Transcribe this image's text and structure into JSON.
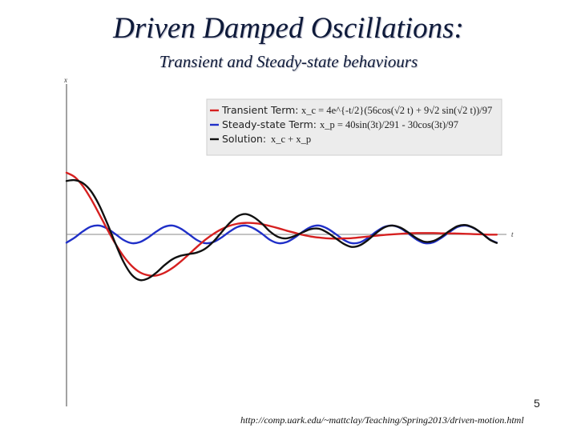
{
  "slide": {
    "title": "Driven Damped Oscillations:",
    "subtitle": "Transient and Steady-state behaviours",
    "page_number": "5",
    "source_url": "http://comp.uark.edu/~mattclay/Teaching/Spring2013/driven-motion.html"
  },
  "chart_data": {
    "type": "line",
    "xlabel": "t",
    "ylabel": "x",
    "xlim": [
      0,
      13.4
    ],
    "ylim": [
      -6.2,
      5.3
    ],
    "grid": false,
    "legend_placement": "top-right",
    "series": [
      {
        "name": "Transient Term",
        "legend_label": "Transient Term:",
        "formula": "x_c = 4e^{-t/2}(56cos(√2 t) + 9√2 sin(√2 t))/97",
        "color": "#d62020",
        "x": [
          0,
          0.25,
          0.5,
          0.75,
          1,
          1.25,
          1.5,
          1.75,
          2,
          2.25,
          2.5,
          2.75,
          3,
          3.25,
          3.5,
          3.75,
          4,
          4.25,
          4.5,
          4.75,
          5,
          5.25,
          5.5,
          5.75,
          6,
          6.25,
          6.5,
          6.75,
          7,
          7.25,
          7.5,
          7.75,
          8,
          8.25,
          8.5,
          8.75,
          9,
          9.25,
          9.5,
          9.75,
          10,
          10.25,
          10.5,
          10.75,
          11,
          11.25,
          11.5,
          11.75,
          12,
          12.25,
          12.5,
          12.75,
          13,
          13.2
        ],
        "y": [
          2.31,
          2.15,
          1.81,
          1.33,
          0.77,
          0.19,
          -0.35,
          -0.82,
          -1.18,
          -1.42,
          -1.53,
          -1.54,
          -1.44,
          -1.26,
          -1.02,
          -0.75,
          -0.47,
          -0.21,
          0.01,
          0.19,
          0.32,
          0.4,
          0.43,
          0.42,
          0.38,
          0.31,
          0.23,
          0.14,
          0.06,
          -0.02,
          -0.08,
          -0.12,
          -0.15,
          -0.16,
          -0.15,
          -0.14,
          -0.11,
          -0.08,
          -0.05,
          -0.02,
          0.0,
          0.02,
          0.04,
          0.05,
          0.05,
          0.05,
          0.04,
          0.04,
          0.03,
          0.02,
          0.01,
          0.0,
          -0.01,
          -0.01
        ]
      },
      {
        "name": "Steady-state Term",
        "legend_label": "Steady-state Term:",
        "formula": "x_p = 40sin(3t)/291 - 30cos(3t)/97",
        "color": "#2030c8",
        "x": [
          0,
          0.25,
          0.5,
          0.75,
          1,
          1.25,
          1.5,
          1.75,
          2,
          2.25,
          2.5,
          2.75,
          3,
          3.25,
          3.5,
          3.75,
          4,
          4.25,
          4.5,
          4.75,
          5,
          5.25,
          5.5,
          5.75,
          6,
          6.25,
          6.5,
          6.75,
          7,
          7.25,
          7.5,
          7.75,
          8,
          8.25,
          8.5,
          8.75,
          9,
          9.25,
          9.5,
          9.75,
          10,
          10.25,
          10.5,
          10.75,
          11,
          11.25,
          11.5,
          11.75,
          12,
          12.25,
          12.5,
          12.75,
          13,
          13.2
        ],
        "y": [
          -0.31,
          -0.12,
          0.11,
          0.29,
          0.33,
          0.22,
          0.01,
          -0.21,
          -0.33,
          -0.29,
          -0.12,
          0.1,
          0.28,
          0.33,
          0.22,
          0.01,
          -0.21,
          -0.33,
          -0.29,
          -0.12,
          0.1,
          0.28,
          0.33,
          0.22,
          0.02,
          -0.21,
          -0.33,
          -0.29,
          -0.12,
          0.1,
          0.28,
          0.33,
          0.22,
          0.02,
          -0.2,
          -0.33,
          -0.3,
          -0.13,
          0.1,
          0.28,
          0.33,
          0.23,
          0.02,
          -0.2,
          -0.33,
          -0.3,
          -0.13,
          0.09,
          0.28,
          0.33,
          0.23,
          0.03,
          -0.2,
          -0.31
        ]
      },
      {
        "name": "Solution",
        "legend_label": "Solution:",
        "formula": "x_c + x_p",
        "color": "#111111",
        "x": [
          0,
          0.25,
          0.5,
          0.75,
          1,
          1.25,
          1.5,
          1.75,
          2,
          2.25,
          2.5,
          2.75,
          3,
          3.25,
          3.5,
          3.75,
          4,
          4.25,
          4.5,
          4.75,
          5,
          5.25,
          5.5,
          5.75,
          6,
          6.25,
          6.5,
          6.75,
          7,
          7.25,
          7.5,
          7.75,
          8,
          8.25,
          8.5,
          8.75,
          9,
          9.25,
          9.5,
          9.75,
          10,
          10.25,
          10.5,
          10.75,
          11,
          11.25,
          11.5,
          11.75,
          12,
          12.25,
          12.5,
          12.75,
          13,
          13.2
        ],
        "y": [
          2.0,
          2.03,
          1.92,
          1.62,
          1.1,
          0.41,
          -0.34,
          -1.03,
          -1.51,
          -1.71,
          -1.65,
          -1.44,
          -1.16,
          -0.93,
          -0.8,
          -0.74,
          -0.68,
          -0.54,
          -0.28,
          0.07,
          0.42,
          0.68,
          0.76,
          0.64,
          0.4,
          0.1,
          -0.1,
          -0.15,
          -0.06,
          0.08,
          0.2,
          0.21,
          0.07,
          -0.14,
          -0.35,
          -0.47,
          -0.41,
          -0.21,
          0.05,
          0.26,
          0.33,
          0.25,
          0.06,
          -0.15,
          -0.28,
          -0.25,
          -0.09,
          0.13,
          0.31,
          0.35,
          0.24,
          0.03,
          -0.21,
          -0.32
        ]
      }
    ]
  }
}
